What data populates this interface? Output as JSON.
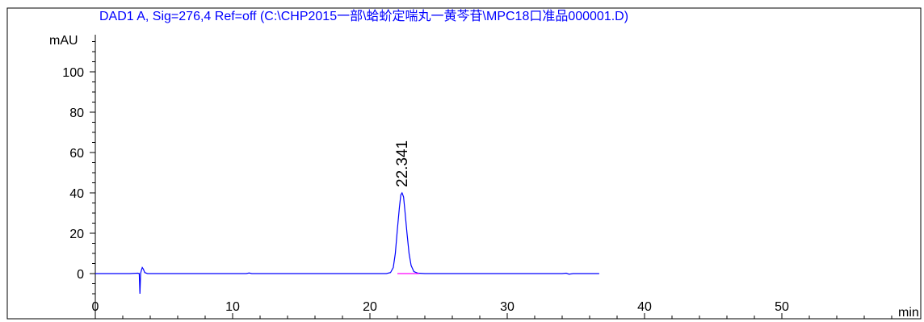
{
  "chart_data": {
    "type": "line",
    "title": "DAD1 A, Sig=276,4 Ref=off (C:\\CHP2015一部\\蛤蚧定喘丸一黄芩苷\\MPC18口准品000001.D)",
    "xlabel": "min",
    "ylabel": "mAU",
    "xlim": [
      0,
      60
    ],
    "ylim": [
      -10,
      118
    ],
    "x_ticks": [
      0,
      10,
      20,
      30,
      40,
      50
    ],
    "y_ticks": [
      0,
      20,
      40,
      60,
      80,
      100
    ],
    "grid": false,
    "colors": {
      "signal": "#0000ff",
      "baseline": "#ff00ff",
      "title": "#0000ff",
      "axes": "#000000"
    },
    "series": [
      {
        "values": [
          [
            0,
            0
          ],
          [
            2.5,
            0
          ],
          [
            3.1,
            0.2
          ],
          [
            3.2,
            0
          ],
          [
            3.25,
            -10
          ],
          [
            3.3,
            0
          ],
          [
            3.35,
            1.5
          ],
          [
            3.42,
            3
          ],
          [
            3.5,
            2.2
          ],
          [
            3.6,
            0.5
          ],
          [
            3.8,
            0
          ],
          [
            11.0,
            0
          ],
          [
            11.2,
            0.3
          ],
          [
            11.4,
            0
          ],
          [
            21.2,
            0
          ],
          [
            21.5,
            0.5
          ],
          [
            21.7,
            3
          ],
          [
            21.85,
            10
          ],
          [
            22.0,
            22
          ],
          [
            22.15,
            33
          ],
          [
            22.25,
            39
          ],
          [
            22.34,
            40
          ],
          [
            22.45,
            38
          ],
          [
            22.55,
            31
          ],
          [
            22.7,
            20
          ],
          [
            22.85,
            10
          ],
          [
            23.0,
            4
          ],
          [
            23.2,
            1
          ],
          [
            23.5,
            0.2
          ],
          [
            24.0,
            0
          ],
          [
            34.0,
            0
          ],
          [
            34.3,
            0.2
          ],
          [
            34.5,
            -0.3
          ],
          [
            34.8,
            0
          ],
          [
            36.7,
            0
          ]
        ]
      }
    ],
    "baseline": {
      "x": [
        22.0,
        23.6
      ],
      "y": 0
    },
    "peaks": [
      {
        "x": 22.341,
        "y": 40,
        "label": "22.341"
      }
    ]
  }
}
